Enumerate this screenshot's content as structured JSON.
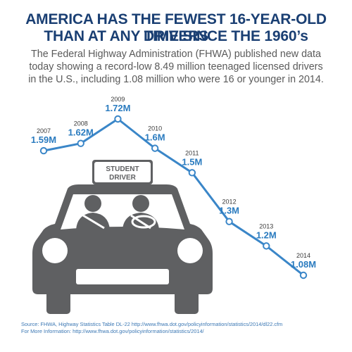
{
  "header": {
    "title_line1": "AMERICA HAS THE FEWEST 16-YEAR-OLD DRIVERS",
    "title_line2": "THAN AT ANY TIME SINCE THE 1960’s",
    "subtitle_line1": "The Federal Highway Administration (FHWA) published new data",
    "subtitle_line2": "today showing a record-low 8.49 million teenaged licensed drivers",
    "subtitle_line3": "in the U.S., including 1.08 million who were 16 or younger in 2014."
  },
  "car": {
    "sign_line1": "STUDENT",
    "sign_line2": "DRIVER"
  },
  "chart_data": {
    "type": "line",
    "x": [
      "2007",
      "2008",
      "2009",
      "2010",
      "2011",
      "2012",
      "2013",
      "2014"
    ],
    "series": [
      {
        "values": [
          1.59,
          1.62,
          1.72,
          1.6,
          1.5,
          1.3,
          1.2,
          1.08
        ]
      }
    ],
    "labels": [
      "1.59M",
      "1.62M",
      "1.72M",
      "1.6M",
      "1.5M",
      "1.3M",
      "1.2M",
      "1.08M"
    ],
    "color": "#3a86c8"
  },
  "footer": {
    "source_line1": "Source: FHWA, Highway Statistics Table DL-22 http://www.fhwa.dot.gov/policyinformation/statistics/2014/dl22.cfm",
    "source_line2": "For More Information: http://www.fhwa.dot.gov/policyinformation/statistics/2014/"
  }
}
